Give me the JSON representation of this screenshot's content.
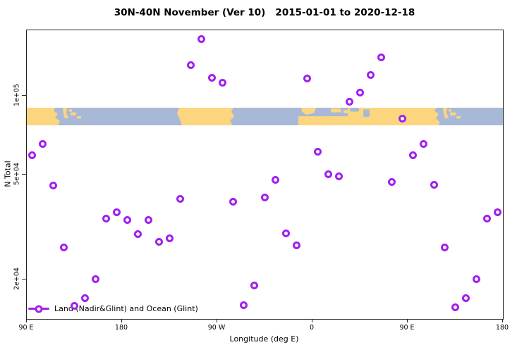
{
  "title": "30N-40N November (Ver 10)   2015-01-01 to 2020-12-18",
  "xlabel": "Longitude (deg E)",
  "ylabel": "N Total",
  "legend": {
    "label": "Land (Nadir&Glint) and Ocean (Glint)",
    "marker": "open-circle"
  },
  "colors": {
    "marker": "#A020F0",
    "land": "#FBD67E",
    "ocean": "#A7B9D6",
    "axis": "#222222",
    "background": "#ffffff"
  },
  "chart_data": {
    "type": "scatter",
    "title": "30N-40N November (Ver 10)   2015-01-01 to 2020-12-18",
    "xlabel": "Longitude (deg E)",
    "ylabel": "N Total",
    "grid": false,
    "legend_position": "bottom-left",
    "x_axis": {
      "ticks": [
        "90 E",
        "180",
        "90 W",
        "0",
        "90 E",
        "180"
      ],
      "tick_positions_deg": [
        90,
        180,
        270,
        360,
        450,
        540
      ],
      "range_deg": [
        90,
        540
      ],
      "note": "longitude axis wraps eastward from 90E around the globe to 180"
    },
    "y_axis": {
      "scale": "log",
      "ticks": [
        "1e+05",
        "5e+04",
        "2e+04"
      ],
      "tick_values": [
        100000,
        50000,
        20000
      ],
      "range": [
        14100,
        177000
      ]
    },
    "map_band": {
      "description": "30N-40N latitude land/ocean strip drawn across the plot",
      "n_top": 90000,
      "n_bottom": 77000
    },
    "bin_width_deg": 10,
    "series": [
      {
        "name": "Land (Nadir&Glint) and Ocean (Glint)",
        "points": [
          {
            "lon_axis_deg": 95,
            "n_total": 59200
          },
          {
            "lon_axis_deg": 105,
            "n_total": 65700
          },
          {
            "lon_axis_deg": 115,
            "n_total": 45400
          },
          {
            "lon_axis_deg": 125,
            "n_total": 26500
          },
          {
            "lon_axis_deg": 135,
            "n_total": 15800
          },
          {
            "lon_axis_deg": 145,
            "n_total": 16900
          },
          {
            "lon_axis_deg": 155,
            "n_total": 20000
          },
          {
            "lon_axis_deg": 165,
            "n_total": 34000
          },
          {
            "lon_axis_deg": 175,
            "n_total": 35900
          },
          {
            "lon_axis_deg": 185,
            "n_total": 33700
          },
          {
            "lon_axis_deg": 195,
            "n_total": 29800
          },
          {
            "lon_axis_deg": 205,
            "n_total": 33700
          },
          {
            "lon_axis_deg": 215,
            "n_total": 27700
          },
          {
            "lon_axis_deg": 225,
            "n_total": 28600
          },
          {
            "lon_axis_deg": 235,
            "n_total": 40600
          },
          {
            "lon_axis_deg": 245,
            "n_total": 131000
          },
          {
            "lon_axis_deg": 255,
            "n_total": 164000
          },
          {
            "lon_axis_deg": 265,
            "n_total": 117000
          },
          {
            "lon_axis_deg": 275,
            "n_total": 112000
          },
          {
            "lon_axis_deg": 285,
            "n_total": 39400
          },
          {
            "lon_axis_deg": 295,
            "n_total": 15900
          },
          {
            "lon_axis_deg": 305,
            "n_total": 19000
          },
          {
            "lon_axis_deg": 315,
            "n_total": 40900
          },
          {
            "lon_axis_deg": 325,
            "n_total": 47700
          },
          {
            "lon_axis_deg": 335,
            "n_total": 30000
          },
          {
            "lon_axis_deg": 345,
            "n_total": 27000
          },
          {
            "lon_axis_deg": 355,
            "n_total": 116000
          },
          {
            "lon_axis_deg": 365,
            "n_total": 61400
          },
          {
            "lon_axis_deg": 375,
            "n_total": 50100
          },
          {
            "lon_axis_deg": 385,
            "n_total": 49200
          },
          {
            "lon_axis_deg": 395,
            "n_total": 94600
          },
          {
            "lon_axis_deg": 405,
            "n_total": 103000
          },
          {
            "lon_axis_deg": 415,
            "n_total": 120000
          },
          {
            "lon_axis_deg": 425,
            "n_total": 140000
          },
          {
            "lon_axis_deg": 435,
            "n_total": 46800
          },
          {
            "lon_axis_deg": 445,
            "n_total": 81600
          },
          {
            "lon_axis_deg": 455,
            "n_total": 59200
          },
          {
            "lon_axis_deg": 465,
            "n_total": 65700
          },
          {
            "lon_axis_deg": 475,
            "n_total": 45700
          },
          {
            "lon_axis_deg": 485,
            "n_total": 26400
          },
          {
            "lon_axis_deg": 495,
            "n_total": 15600
          },
          {
            "lon_axis_deg": 505,
            "n_total": 16900
          },
          {
            "lon_axis_deg": 515,
            "n_total": 20000
          },
          {
            "lon_axis_deg": 525,
            "n_total": 34000
          },
          {
            "lon_axis_deg": 535,
            "n_total": 35900
          }
        ]
      }
    ]
  }
}
